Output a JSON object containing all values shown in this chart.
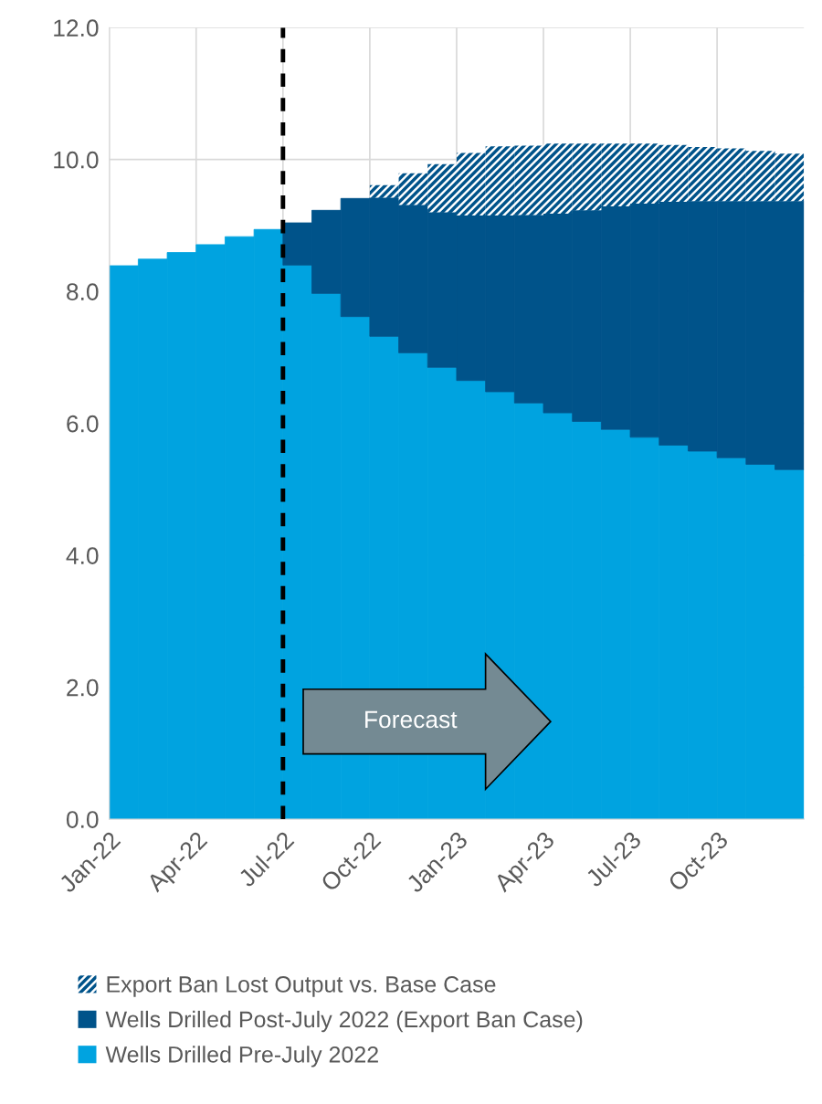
{
  "chart_data": {
    "type": "bar",
    "stacked": true,
    "categories": [
      "Jan-22",
      null,
      null,
      "Apr-22",
      null,
      null,
      "Jul-22",
      null,
      null,
      "Oct-22",
      null,
      null,
      "Jan-23",
      null,
      null,
      "Apr-23",
      null,
      null,
      "Jul-23",
      null,
      null,
      "Oct-23",
      null,
      null
    ],
    "series": [
      {
        "name": "Wells Drilled Pre-July 2022",
        "color": "#00a3e0",
        "values": [
          8.39,
          8.49,
          8.59,
          8.71,
          8.83,
          8.94,
          8.4,
          7.97,
          7.62,
          7.32,
          7.07,
          6.85,
          6.65,
          6.48,
          6.31,
          6.16,
          6.03,
          5.91,
          5.79,
          5.67,
          5.58,
          5.48,
          5.38,
          5.3
        ]
      },
      {
        "name": "Wells Drilled Post-July 2022 (Export Ban Case)",
        "color": "#00538a",
        "values": [
          null,
          null,
          null,
          null,
          null,
          null,
          0.64,
          1.26,
          1.79,
          2.1,
          2.24,
          2.35,
          2.5,
          2.67,
          2.85,
          3.02,
          3.2,
          3.38,
          3.54,
          3.69,
          3.79,
          3.89,
          3.99,
          4.07
        ]
      },
      {
        "name": "Export Ban Lost Output vs. Base Case",
        "color": "#00538a",
        "values": [
          null,
          null,
          null,
          null,
          null,
          null,
          null,
          null,
          null,
          0.19,
          0.48,
          0.73,
          0.95,
          1.05,
          1.05,
          1.06,
          1.01,
          0.95,
          0.91,
          0.86,
          0.82,
          0.8,
          0.76,
          0.72
        ]
      }
    ],
    "ylim": [
      0,
      12
    ],
    "yticks": [
      {
        "value": 0,
        "label": "0.0"
      },
      {
        "value": 2,
        "label": "2.0"
      },
      {
        "value": 4,
        "label": "4.0"
      },
      {
        "value": 6,
        "label": "6.0"
      },
      {
        "value": 8,
        "label": "8.0"
      },
      {
        "value": 10,
        "label": "10.0"
      },
      {
        "value": 12,
        "label": "12.0"
      }
    ],
    "grid": true,
    "legend": "bottom",
    "ref_lines": [
      {
        "axis": "x",
        "value": "Jul-22",
        "color": "#000000",
        "line_style": "dashed"
      }
    ],
    "annotations": [
      "Forecast"
    ]
  }
}
